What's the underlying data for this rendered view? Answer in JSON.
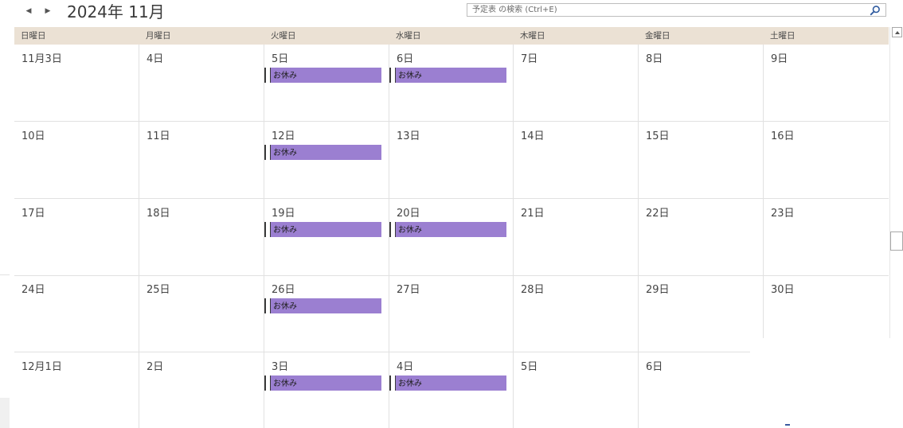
{
  "header": {
    "prev_label": "◀",
    "next_label": "▶",
    "title": "2024年 11月"
  },
  "search": {
    "placeholder": "予定表 の検索 (Ctrl+E)",
    "icon": "magnifier-icon"
  },
  "weekdays": [
    "日曜日",
    "月曜日",
    "火曜日",
    "水曜日",
    "木曜日",
    "金曜日",
    "土曜日"
  ],
  "weeks": [
    {
      "days": [
        {
          "label": "11月3日",
          "events": []
        },
        {
          "label": "4日",
          "events": []
        },
        {
          "label": "5日",
          "events": [
            "お休み"
          ]
        },
        {
          "label": "6日",
          "events": [
            "お休み"
          ]
        },
        {
          "label": "7日",
          "events": []
        },
        {
          "label": "8日",
          "events": []
        },
        {
          "label": "9日",
          "events": []
        }
      ]
    },
    {
      "days": [
        {
          "label": "10日",
          "events": []
        },
        {
          "label": "11日",
          "events": []
        },
        {
          "label": "12日",
          "events": [
            "お休み"
          ]
        },
        {
          "label": "13日",
          "events": []
        },
        {
          "label": "14日",
          "events": []
        },
        {
          "label": "15日",
          "events": []
        },
        {
          "label": "16日",
          "events": []
        }
      ]
    },
    {
      "days": [
        {
          "label": "17日",
          "events": []
        },
        {
          "label": "18日",
          "events": []
        },
        {
          "label": "19日",
          "events": [
            "お休み"
          ]
        },
        {
          "label": "20日",
          "events": [
            "お休み"
          ]
        },
        {
          "label": "21日",
          "events": []
        },
        {
          "label": "22日",
          "events": []
        },
        {
          "label": "23日",
          "events": []
        }
      ]
    },
    {
      "days": [
        {
          "label": "24日",
          "events": []
        },
        {
          "label": "25日",
          "events": []
        },
        {
          "label": "26日",
          "events": [
            "お休み"
          ]
        },
        {
          "label": "27日",
          "events": []
        },
        {
          "label": "28日",
          "events": []
        },
        {
          "label": "29日",
          "events": []
        },
        {
          "label": "30日",
          "events": []
        }
      ]
    },
    {
      "days": [
        {
          "label": "12月1日",
          "events": []
        },
        {
          "label": "2日",
          "events": []
        },
        {
          "label": "3日",
          "events": [
            "お休み"
          ]
        },
        {
          "label": "4日",
          "events": [
            "お休み"
          ]
        },
        {
          "label": "5日",
          "events": []
        },
        {
          "label": "6日",
          "events": []
        },
        {
          "label": "",
          "events": []
        }
      ]
    }
  ],
  "colors": {
    "header_bg": "#ebe1d4",
    "event_bg": "#9b7fd1",
    "grid_line": "#e1e1e1",
    "text": "#444444"
  }
}
